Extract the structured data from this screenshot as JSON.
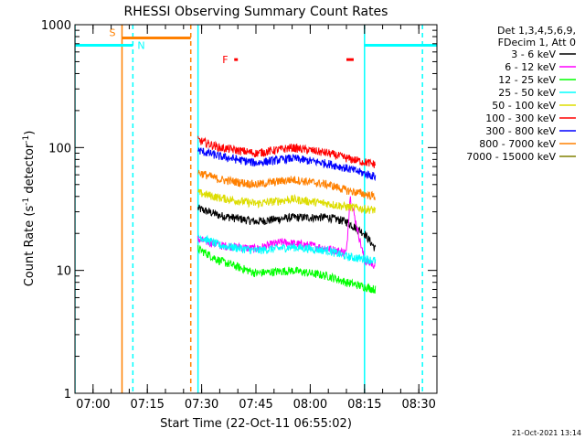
{
  "chart_data": {
    "type": "line",
    "title": "RHESSI Observing Summary Count Rates",
    "xlabel": "Start Time (22-Oct-11 06:55:02)",
    "ylabel_main": "Count Rate (s",
    "ylabel_sup1": "-1",
    "ylabel_mid": " detector",
    "ylabel_sup2": "-1",
    "ylabel_end": ")",
    "y_scale": "log",
    "xlim": [
      "06:55",
      "08:35"
    ],
    "ylim": [
      1,
      1000
    ],
    "x_ticks": [
      "07:00",
      "07:15",
      "07:30",
      "07:45",
      "08:00",
      "08:15",
      "08:30"
    ],
    "y_ticks": [
      {
        "value": 1,
        "label": "1"
      },
      {
        "value": 10,
        "label": "10"
      },
      {
        "value": 100,
        "label": "100"
      },
      {
        "value": 1000,
        "label": "1000"
      }
    ],
    "grid": false,
    "legend_header": [
      "Det 1,3,4,5,6,9,",
      "FDecim 1, Att 0"
    ],
    "legend_position": "right",
    "series": [
      {
        "name": "3 - 6 keV",
        "color": "#000000",
        "t": [
          "07:29",
          "07:35",
          "07:45",
          "07:55",
          "08:05",
          "08:10",
          "08:15",
          "08:18"
        ],
        "values": [
          32,
          28,
          25,
          27,
          27,
          25,
          20,
          15
        ]
      },
      {
        "name": "6 - 12 keV",
        "color": "#ff00ff",
        "t": [
          "07:29",
          "07:35",
          "07:45",
          "07:52",
          "08:00",
          "08:05",
          "08:10",
          "08:11",
          "08:15",
          "08:18"
        ],
        "values": [
          18,
          16,
          15,
          17,
          16,
          15,
          14,
          40,
          12,
          11
        ]
      },
      {
        "name": "12 - 25 keV",
        "color": "#00ff00",
        "t": [
          "07:29",
          "07:35",
          "07:45",
          "07:55",
          "08:05",
          "08:10",
          "08:18"
        ],
        "values": [
          15,
          12,
          9.5,
          10,
          9,
          8,
          7
        ]
      },
      {
        "name": "25 - 50 keV",
        "color": "#00ffff",
        "t": [
          "07:29",
          "07:35",
          "07:45",
          "07:55",
          "08:05",
          "08:10",
          "08:18"
        ],
        "values": [
          19,
          16,
          14.5,
          15.5,
          14.5,
          13,
          12
        ]
      },
      {
        "name": "50 - 100 keV",
        "color": "#dddd00",
        "t": [
          "07:29",
          "07:35",
          "07:45",
          "07:55",
          "08:05",
          "08:10",
          "08:18"
        ],
        "values": [
          43,
          39,
          35,
          38,
          35,
          33,
          31
        ]
      },
      {
        "name": "100 - 300 keV",
        "color": "#ff0000",
        "t": [
          "07:29",
          "07:35",
          "07:45",
          "07:55",
          "08:05",
          "08:10",
          "08:18"
        ],
        "values": [
          115,
          100,
          90,
          100,
          90,
          82,
          73
        ]
      },
      {
        "name": "300 - 800 keV",
        "color": "#0000ff",
        "t": [
          "07:29",
          "07:35",
          "07:45",
          "07:55",
          "08:05",
          "08:10",
          "08:18"
        ],
        "values": [
          95,
          85,
          75,
          82,
          74,
          68,
          58
        ]
      },
      {
        "name": "800 - 7000 keV",
        "color": "#ff8000",
        "t": [
          "07:29",
          "07:35",
          "07:45",
          "07:55",
          "08:05",
          "08:10",
          "08:18"
        ],
        "values": [
          63,
          55,
          50,
          55,
          50,
          45,
          40
        ]
      },
      {
        "name": "7000 - 15000 keV",
        "color": "#808000",
        "t": [],
        "values": []
      }
    ],
    "annotations": {
      "night_bars": [
        {
          "label": "N",
          "label_color": "#00ffff",
          "color": "#00ffff",
          "intervals": [
            [
              "06:55",
              "07:11"
            ],
            [
              "08:15",
              "08:35"
            ]
          ],
          "value": 680
        }
      ],
      "saa_bars": [
        {
          "label": "S",
          "label_color": "#ff8000",
          "color": "#ff8000",
          "intervals": [
            [
              "07:08",
              "07:27"
            ]
          ],
          "value": 780
        }
      ],
      "flare_bars": [
        {
          "label": "F",
          "label_color": "#ff0000",
          "color": "#ff0000",
          "intervals": [
            [
              "07:39",
              "07:40"
            ],
            [
              "08:10",
              "08:12"
            ]
          ],
          "value": 520
        }
      ],
      "vlines": [
        {
          "t": "06:55",
          "color": "#00ffff",
          "style": "solid"
        },
        {
          "t": "07:08",
          "color": "#ff8000",
          "style": "solid"
        },
        {
          "t": "07:11",
          "color": "#00ffff",
          "style": "dashed"
        },
        {
          "t": "07:27",
          "color": "#ff8000",
          "style": "dashed"
        },
        {
          "t": "07:29",
          "color": "#00ffff",
          "style": "solid"
        },
        {
          "t": "08:15",
          "color": "#00ffff",
          "style": "solid"
        },
        {
          "t": "08:31",
          "color": "#00ffff",
          "style": "dashed"
        }
      ]
    },
    "timestamp": "21-Oct-2021 13:14"
  }
}
